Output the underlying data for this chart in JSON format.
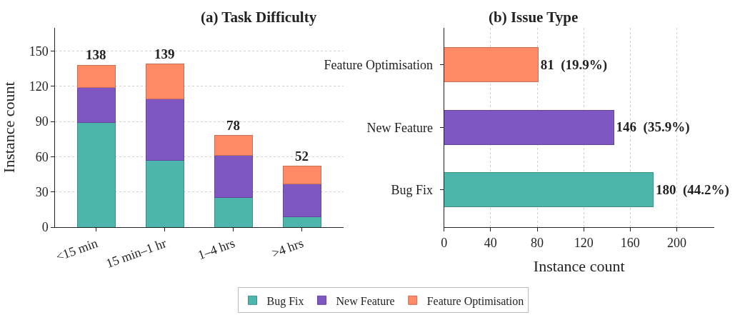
{
  "chart_data": [
    {
      "type": "bar",
      "title": "(a) Task Difficulty",
      "ylabel": "Instance count",
      "stacked": true,
      "categories": [
        "<15 min",
        "15 min–1 hr",
        "1–4 hrs",
        ">4 hrs"
      ],
      "series": [
        {
          "name": "Bug Fix",
          "color": "#4db6ac",
          "values": [
            89,
            57,
            25,
            9
          ]
        },
        {
          "name": "New Feature",
          "color": "#7e57c2",
          "values": [
            30,
            52,
            36,
            28
          ]
        },
        {
          "name": "Feature Optimisation",
          "color": "#ff8a65",
          "values": [
            19,
            30,
            17,
            15
          ]
        }
      ],
      "totals": [
        "138",
        "139",
        "78",
        "52"
      ],
      "ylim": [
        0,
        170
      ],
      "yticks": [
        0,
        30,
        60,
        90,
        120,
        150
      ],
      "grid": "y",
      "legend": "bottom"
    },
    {
      "type": "bar",
      "title": "(b) Issue Type",
      "xlabel": "Instance count",
      "orientation": "horizontal",
      "categories": [
        "Feature Optimisation",
        "New Feature",
        "Bug Fix"
      ],
      "values": [
        81,
        146,
        180
      ],
      "colors": [
        "#ff8a65",
        "#7e57c2",
        "#4db6ac"
      ],
      "value_labels": [
        "81  (19.9%)",
        "146  (35.9%)",
        "180  (44.2%)"
      ],
      "xlim": [
        0,
        232
      ],
      "xticks": [
        0,
        40,
        80,
        120,
        160,
        200
      ],
      "grid": "x"
    }
  ]
}
